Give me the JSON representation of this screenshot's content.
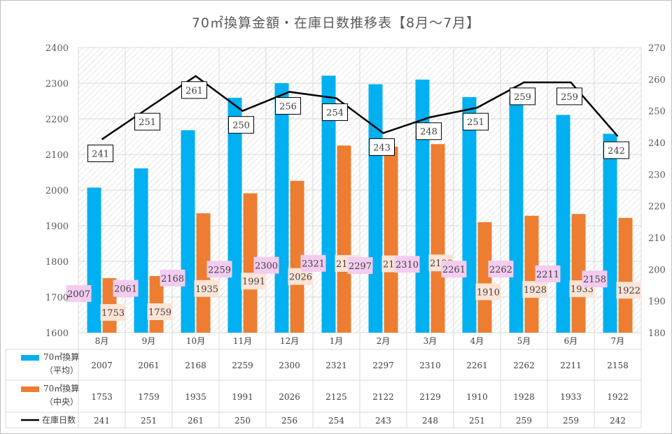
{
  "chart_data": {
    "type": "bar+line",
    "title": "70㎡換算金額・在庫日数推移表【8月～7月】",
    "categories": [
      "8月",
      "9月",
      "10月",
      "11月",
      "12月",
      "1月",
      "2月",
      "3月",
      "4月",
      "5月",
      "6月",
      "7月"
    ],
    "series": [
      {
        "name": "70㎡換算",
        "name2": "（平均）",
        "kind": "bar",
        "axis": "left",
        "color": "#00B0F0",
        "values": [
          2007,
          2061,
          2168,
          2259,
          2300,
          2321,
          2297,
          2310,
          2261,
          2262,
          2211,
          2158
        ]
      },
      {
        "name": "70㎡換算",
        "name2": "（中央）",
        "kind": "bar",
        "axis": "left",
        "color": "#ED7D31",
        "values": [
          1753,
          1759,
          1935,
          1991,
          2026,
          2125,
          2122,
          2129,
          1910,
          1928,
          1933,
          1922
        ]
      },
      {
        "name": "在庫日数",
        "name2": "",
        "kind": "line",
        "axis": "right",
        "color": "#000000",
        "values": [
          241,
          251,
          261,
          250,
          256,
          254,
          243,
          248,
          251,
          259,
          259,
          242
        ]
      }
    ],
    "y_left": {
      "min": 1600,
      "max": 2400,
      "step": 100,
      "ticks": [
        "1600",
        "1700",
        "1800",
        "1900",
        "2000",
        "2100",
        "2200",
        "2300",
        "2400"
      ]
    },
    "y_right": {
      "min": 180,
      "max": 270,
      "step": 10,
      "ticks": [
        "180",
        "190",
        "200",
        "210",
        "220",
        "230",
        "240",
        "250",
        "260",
        "270"
      ]
    },
    "grid": true,
    "legend": "data-table-bottom",
    "label_colors": {
      "avg": "#F4CCF0",
      "median": "#FCE4D6",
      "days": "#ffffff"
    }
  }
}
